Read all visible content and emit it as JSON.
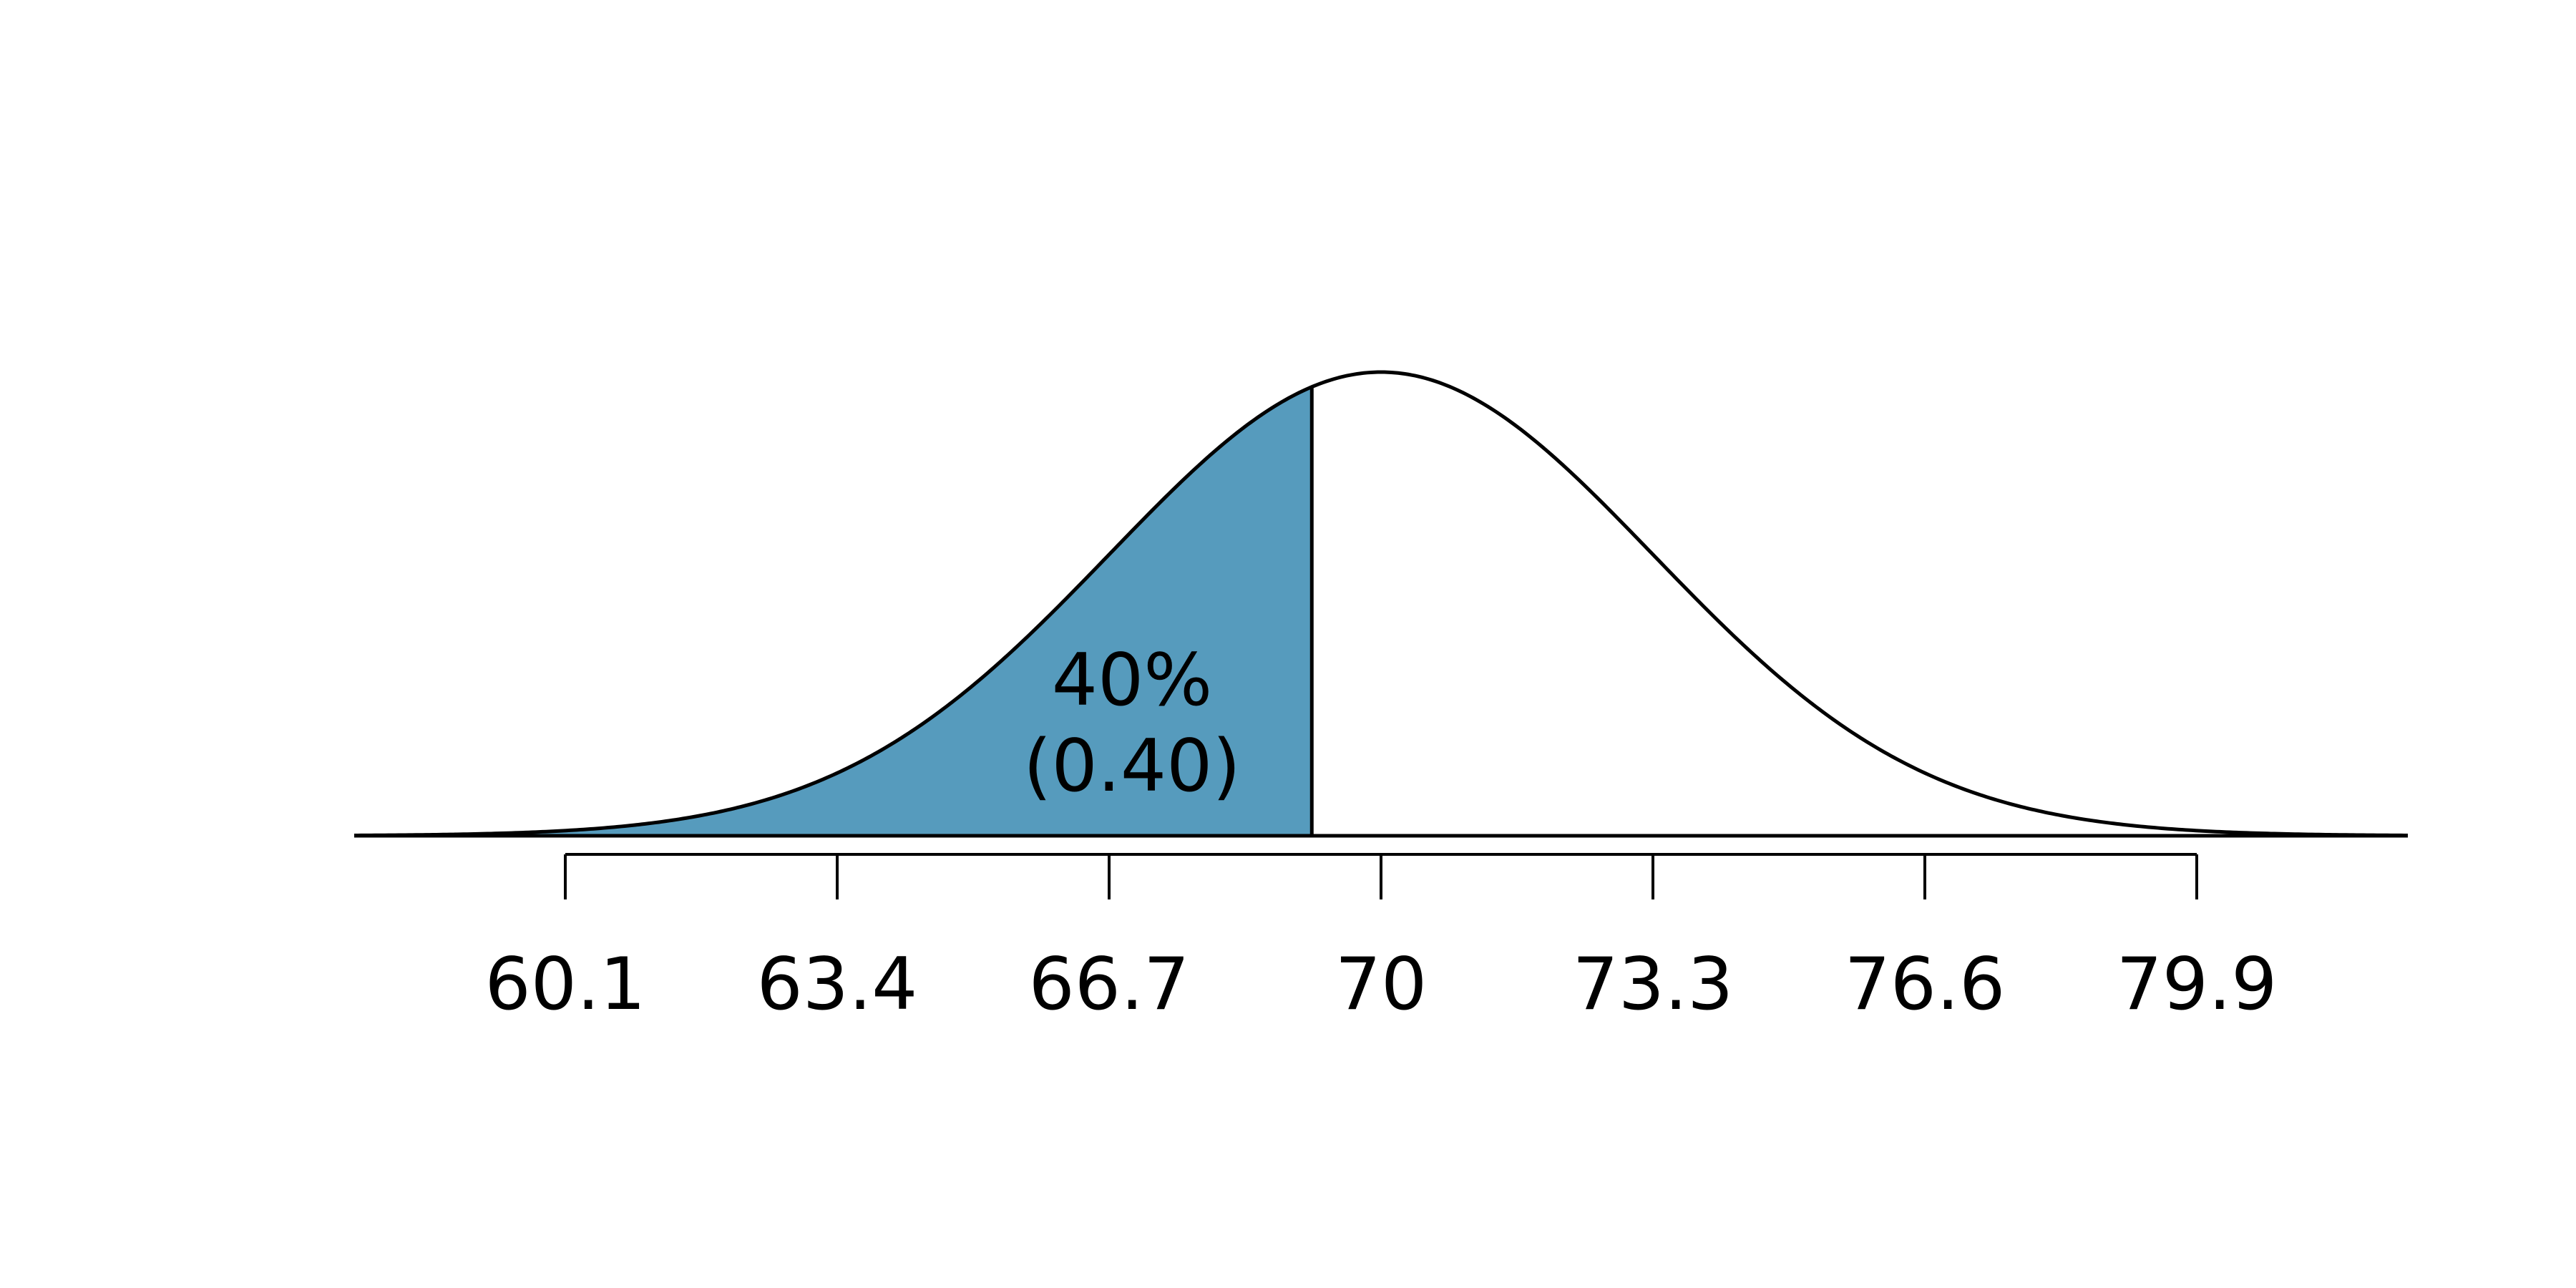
{
  "chart_data": {
    "type": "area",
    "title": "",
    "xlabel": "",
    "ylabel": "",
    "distribution": {
      "kind": "normal",
      "mean": 70,
      "sd": 3.3
    },
    "x_ticks": [
      60.1,
      63.4,
      66.7,
      70,
      73.3,
      76.6,
      79.9
    ],
    "x_tick_labels": [
      "60.1",
      "63.4",
      "66.7",
      "70",
      "73.3",
      "76.6",
      "79.9"
    ],
    "shaded_region": {
      "side": "lower",
      "upper_bound": 69.16,
      "area": 0.4
    },
    "annotation": {
      "percent_label": "40%",
      "decimal_label": "(0.40)"
    },
    "colors": {
      "shade": "#569bbd",
      "curve": "#000000",
      "axis": "#000000"
    },
    "grid": false,
    "legend": "none"
  }
}
